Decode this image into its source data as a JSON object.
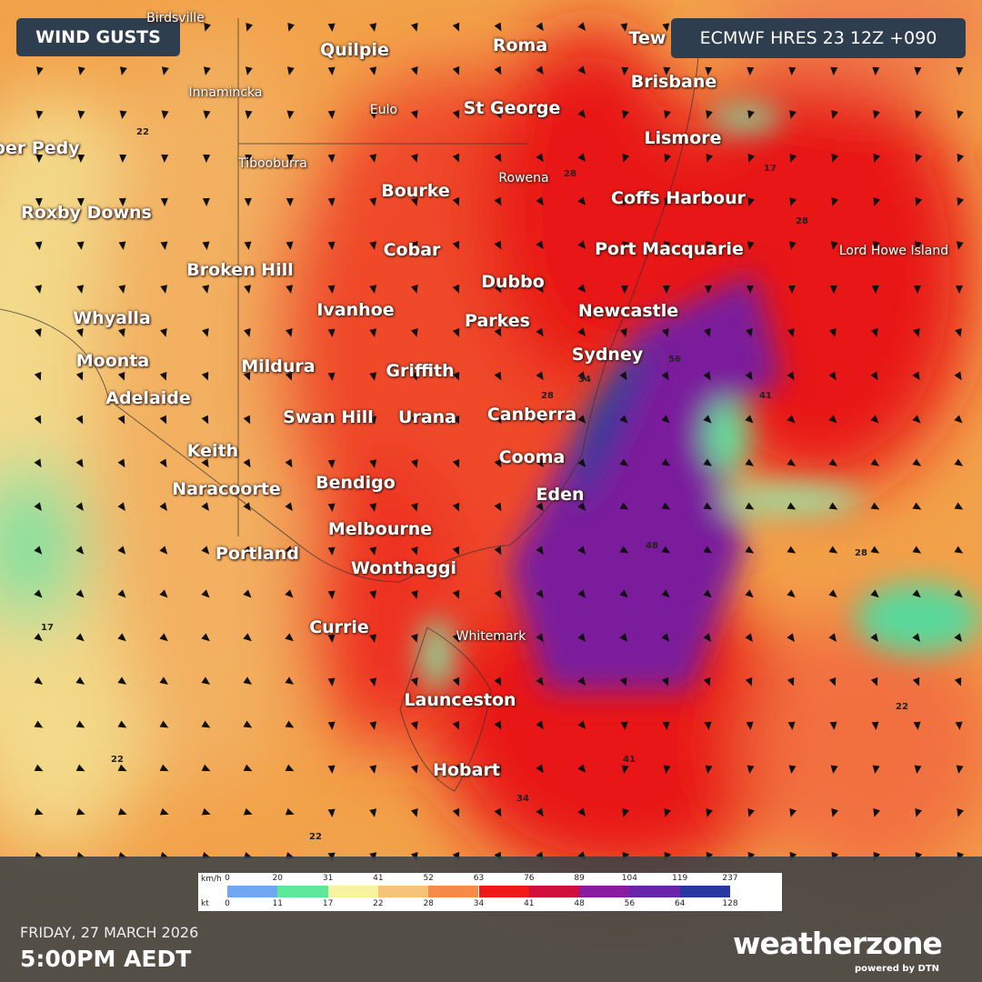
{
  "header": {
    "title": "WIND GUSTS",
    "model": "ECMWF HRES 23 12Z +090"
  },
  "places": [
    "Birdsville",
    "Quilpie",
    "Roma",
    "Tew",
    "Brisbane",
    "Innamincka",
    "Eulo",
    "St George",
    "Lismore",
    "ber Pedy",
    "Tibooburra",
    "Rowena",
    "Bourke",
    "Coffs Harbour",
    "Roxby Downs",
    "Cobar",
    "Port Macquarie",
    "Lord Howe Island",
    "Broken Hill",
    "Dubbo",
    "Ivanhoe",
    "Newcastle",
    "Whyalla",
    "Parkes",
    "Sydney",
    "Moonta",
    "Mildura",
    "Griffith",
    "Adelaide",
    "Swan Hill",
    "Urana",
    "Canberra",
    "Keith",
    "Cooma",
    "Bendigo",
    "Naracoorte",
    "Eden",
    "Melbourne",
    "Portland",
    "Wonthaggi",
    "Currie",
    "Whitemark",
    "Launceston",
    "Hobart"
  ],
  "contours": [
    "22",
    "22",
    "28",
    "28",
    "34",
    "41",
    "48",
    "56",
    "17",
    "17",
    "22",
    "28",
    "34",
    "41",
    "28",
    "22"
  ],
  "legend": {
    "unit_kmh": "km/h",
    "unit_kt": "kt",
    "kmh": [
      "0",
      "20",
      "31",
      "41",
      "52",
      "63",
      "76",
      "89",
      "104",
      "119",
      "237"
    ],
    "kt": [
      "0",
      "11",
      "17",
      "22",
      "28",
      "34",
      "41",
      "48",
      "56",
      "64",
      "128"
    ]
  },
  "footer": {
    "date": "FRIDAY, 27 MARCH 2026",
    "time": "5:00PM AEDT",
    "logo": "weatherzone",
    "powered": "powered by DTN"
  }
}
